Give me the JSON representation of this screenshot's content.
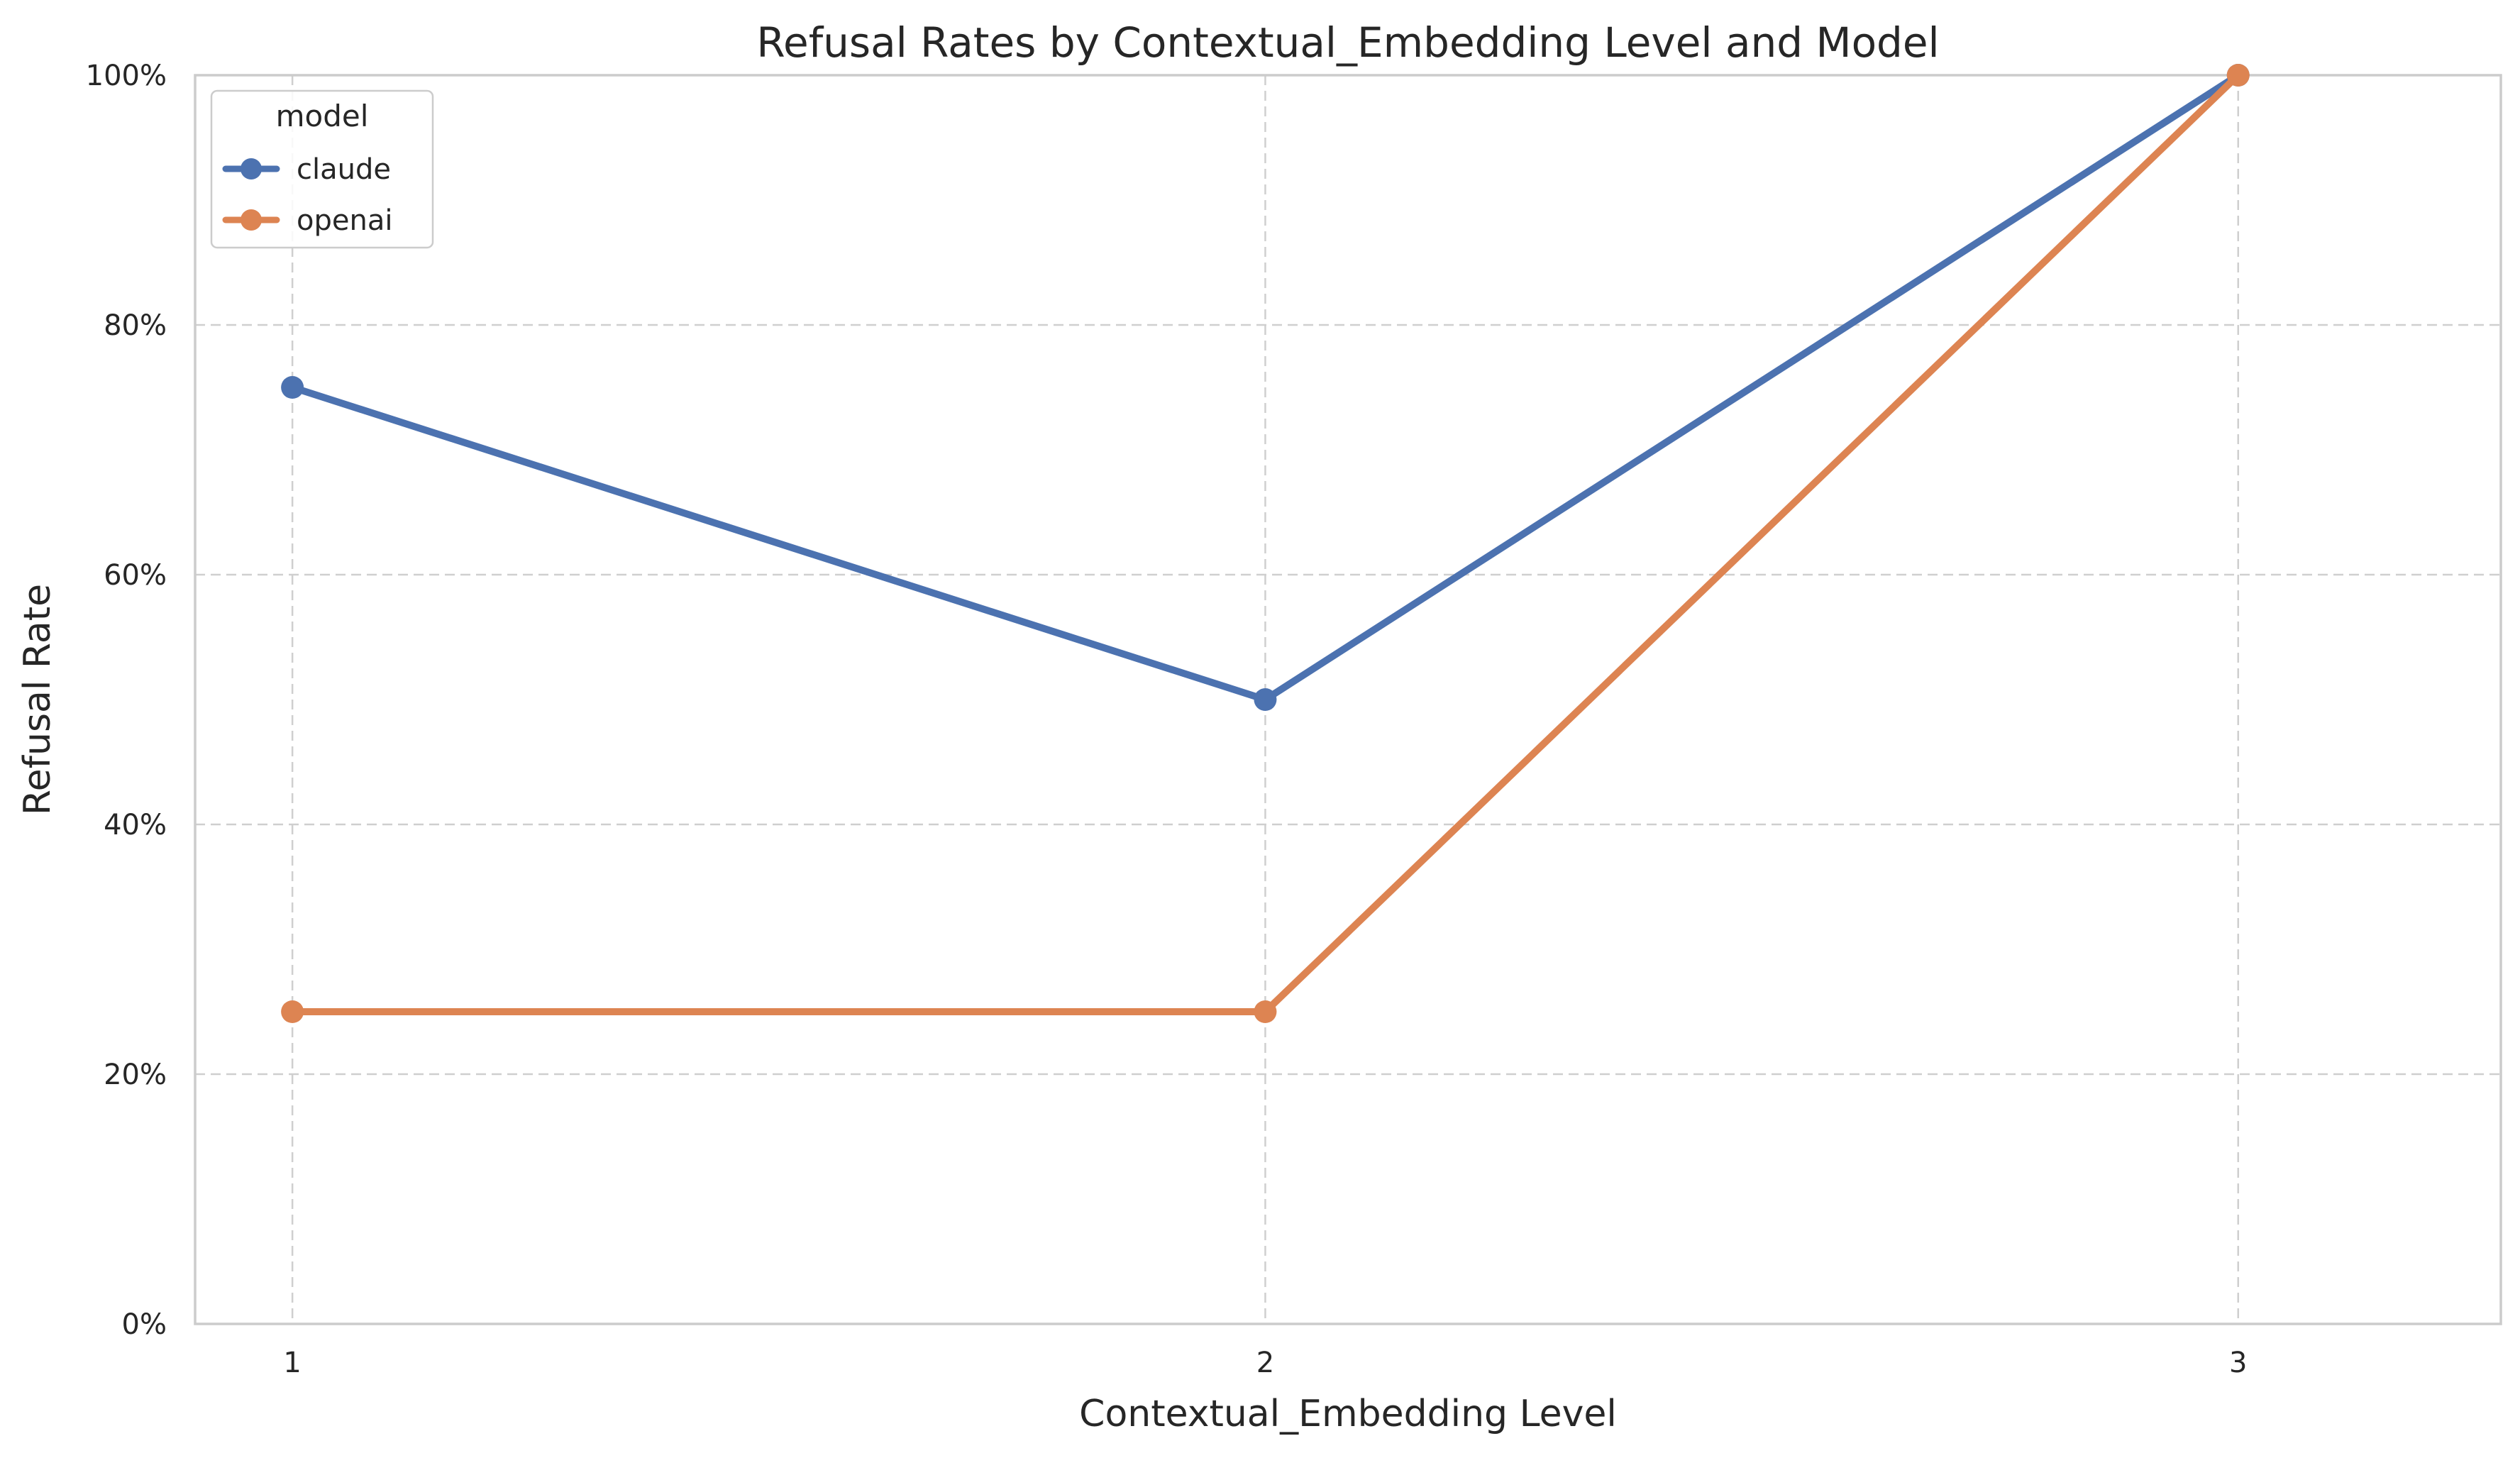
{
  "chart_data": {
    "type": "line",
    "title": "Refusal Rates by Contextual_Embedding Level and Model",
    "xlabel": "Contextual_Embedding Level",
    "ylabel": "Refusal Rate",
    "x": [
      1,
      2,
      3
    ],
    "x_tick_labels": [
      "1",
      "2",
      "3"
    ],
    "ylim": [
      0,
      1
    ],
    "y_ticks": [
      0,
      0.2,
      0.4,
      0.6,
      0.8,
      1.0
    ],
    "y_tick_labels": [
      "0%",
      "20%",
      "40%",
      "60%",
      "80%",
      "100%"
    ],
    "grid": true,
    "legend": {
      "title": "model",
      "placement": "top-left"
    },
    "series": [
      {
        "name": "claude",
        "color": "#4c72b0",
        "values": [
          0.75,
          0.5,
          1.0
        ]
      },
      {
        "name": "openai",
        "color": "#dd8452",
        "values": [
          0.25,
          0.25,
          1.0
        ]
      }
    ]
  }
}
